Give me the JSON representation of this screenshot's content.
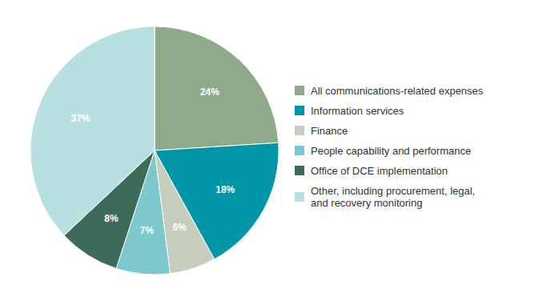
{
  "chart_data": {
    "type": "pie",
    "categories": [
      "All communications-related expenses",
      "Information services",
      "Finance",
      "People capability and performance",
      "Office of DCE implementation",
      "Other, including procurement, legal,\nand recovery monitoring"
    ],
    "values": [
      24,
      18,
      6,
      7,
      8,
      37
    ],
    "value_labels": [
      "24%",
      "18%",
      "6%",
      "7%",
      "8%",
      "37%"
    ],
    "data_labels": true,
    "colors": [
      "#8faa8b",
      "#0096a8",
      "#c5cebc",
      "#7dc8cc",
      "#3d6b5a",
      "#b8e0e0"
    ],
    "legend": "right"
  }
}
